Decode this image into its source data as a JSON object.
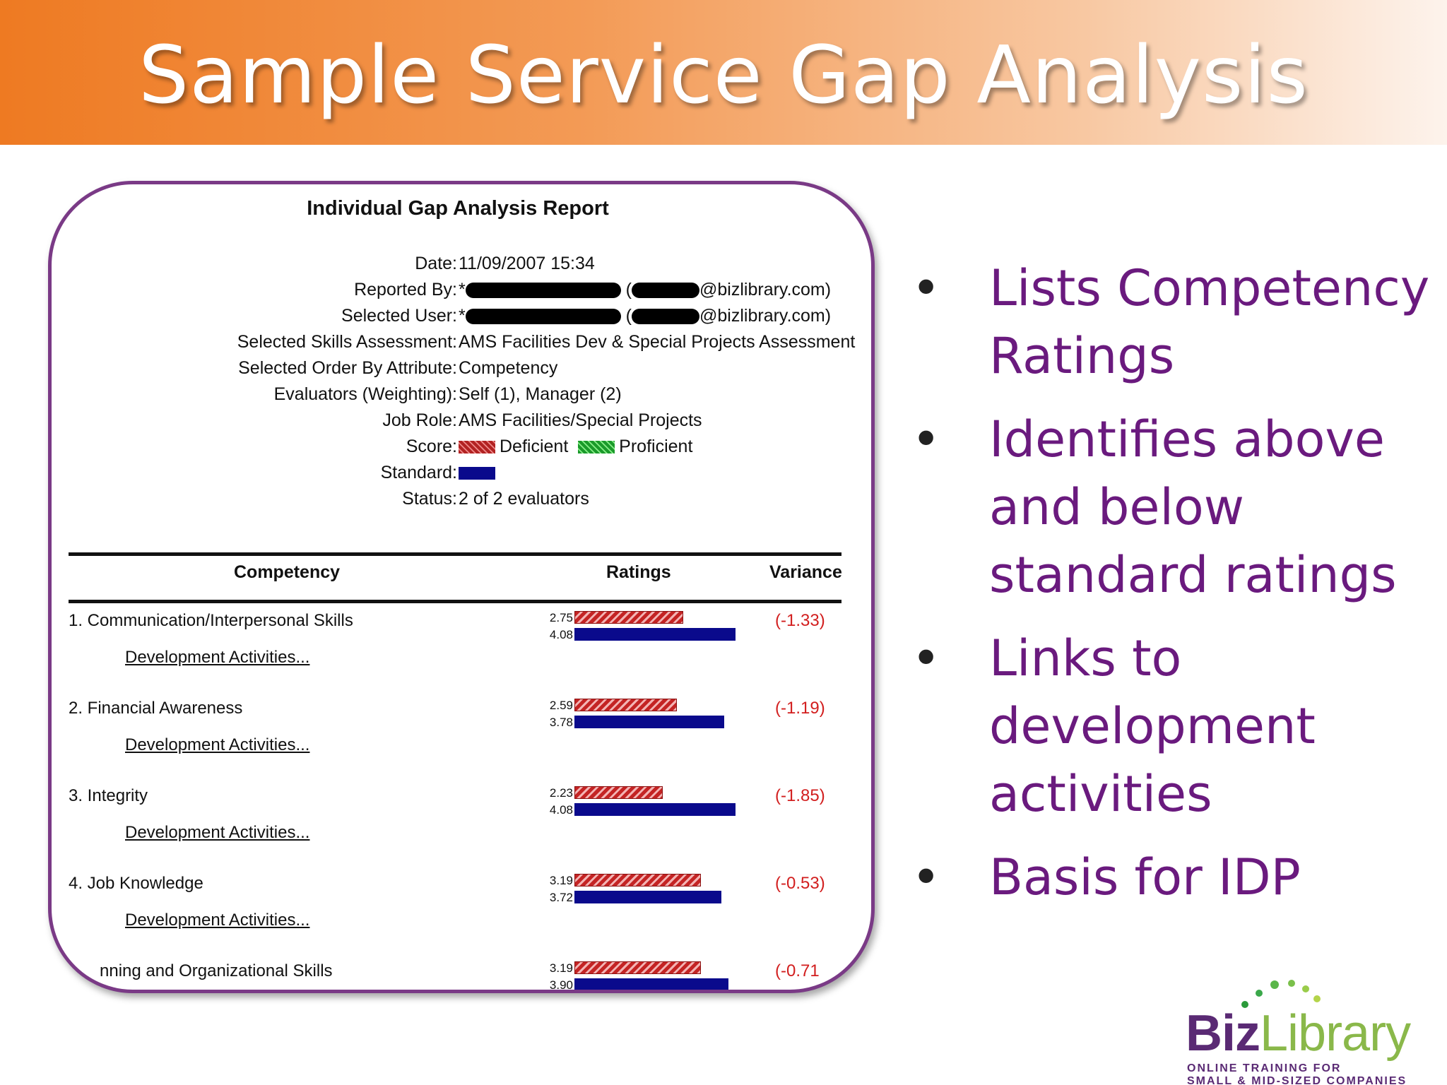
{
  "slide": {
    "title": "Sample Service Gap Analysis"
  },
  "report": {
    "title": "Individual Gap Analysis Report",
    "meta": {
      "date_label": "Date:",
      "date_value": "11/09/2007 15:34",
      "reported_by_label": "Reported By:",
      "reported_by_prefix": "*",
      "reported_by_email": "@bizlibrary.com)",
      "selected_user_label": "Selected User:",
      "selected_user_prefix": "*",
      "selected_user_email": "@bizlibrary.com)",
      "assessment_label": "Selected Skills Assessment:",
      "assessment_value": "AMS Facilities Dev & Special Projects Assessment",
      "order_label": "Selected Order By Attribute:",
      "order_value": "Competency",
      "evaluators_label": "Evaluators (Weighting):",
      "evaluators_value": "Self (1), Manager (2)",
      "job_role_label": "Job Role:",
      "job_role_value": "AMS Facilities/Special Projects",
      "score_label": "Score:",
      "score_deficient": "Deficient",
      "score_proficient": "Proficient",
      "standard_label": "Standard:",
      "status_label": "Status:",
      "status_value": "2 of 2 evaluators"
    },
    "columns": {
      "competency": "Competency",
      "ratings": "Ratings",
      "variance": "Variance"
    },
    "rating_scale_max": 5,
    "competencies": [
      {
        "name": "1. Communication/Interpersonal Skills",
        "dev": "Development Activities...",
        "score": 2.75,
        "score_label": "2.75",
        "standard": 4.08,
        "standard_label": "4.08",
        "variance": "(-1.33)"
      },
      {
        "name": "2. Financial Awareness",
        "dev": "Development Activities...",
        "score": 2.59,
        "score_label": "2.59",
        "standard": 3.78,
        "standard_label": "3.78",
        "variance": "(-1.19)"
      },
      {
        "name": "3. Integrity",
        "dev": "Development Activities...",
        "score": 2.23,
        "score_label": "2.23",
        "standard": 4.08,
        "standard_label": "4.08",
        "variance": "(-1.85)"
      },
      {
        "name": "4. Job Knowledge",
        "dev": "Development Activities...",
        "score": 3.19,
        "score_label": "3.19",
        "standard": 3.72,
        "standard_label": "3.72",
        "variance": "(-0.53)"
      },
      {
        "name": "nning and Organizational Skills",
        "dev": "",
        "score": 3.19,
        "score_label": "3.19",
        "standard": 3.9,
        "standard_label": "3.90",
        "variance": "(-0.71"
      }
    ]
  },
  "bullets": [
    "Lists Competency Ratings",
    "Identifies above and below standard ratings",
    "Links to development activities",
    "Basis for IDP"
  ],
  "bullet_glyph": "•",
  "logo": {
    "biz": "Biz",
    "library": "Library",
    "tagline1": "ONLINE TRAINING FOR",
    "tagline2": "SMALL & MID-SIZED COMPANIES"
  },
  "colors": {
    "accent_orange": "#ee7a22",
    "bullet_purple": "#6a1a7e",
    "deficient_red": "#c42424",
    "standard_blue": "#0a0a8c",
    "variance_red": "#d21e1e"
  }
}
